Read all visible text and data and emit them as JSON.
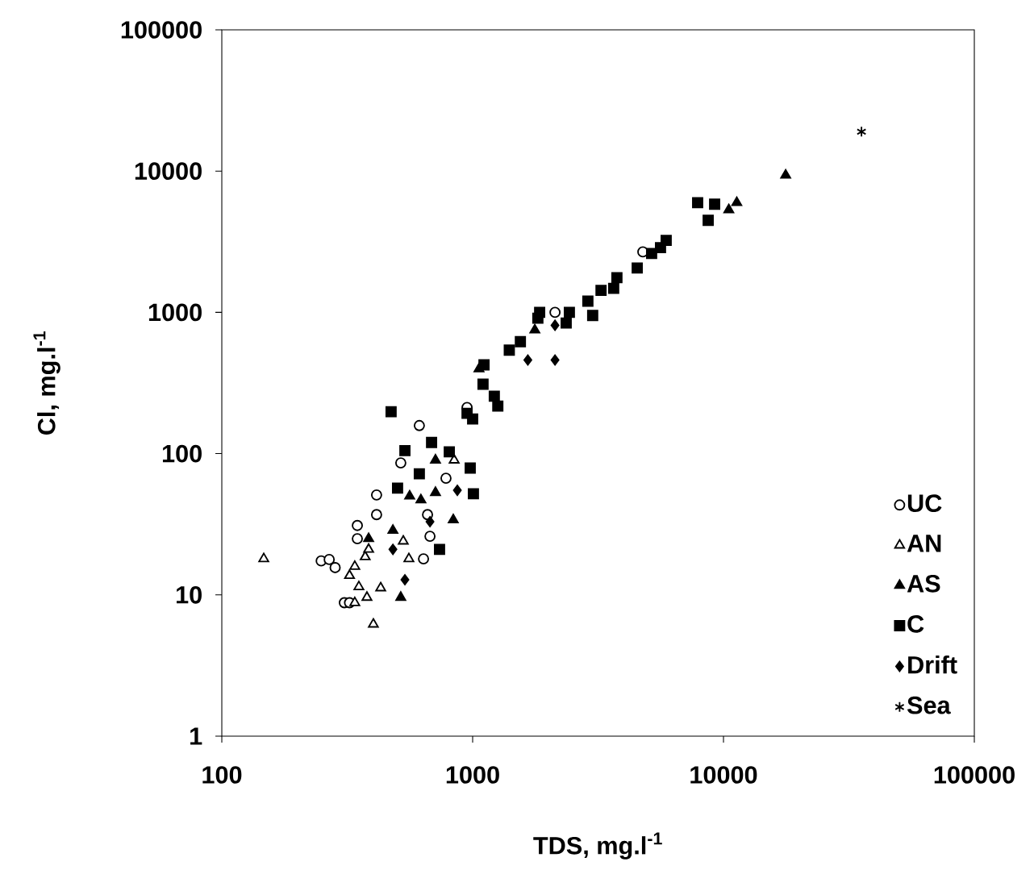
{
  "chart_data": {
    "type": "scatter",
    "xlabel": "TDS, mg.l$^{-1}$",
    "ylabel": "Cl, mg.l$^{-1}$",
    "log": "xy",
    "grid": false,
    "legend": "bottom right",
    "xlim": [
      100,
      100000
    ],
    "ylim": [
      1,
      100000
    ],
    "xticks": [
      100,
      1000,
      10000,
      100000
    ],
    "yticks": [
      1,
      10,
      100,
      1000,
      10000,
      100000
    ],
    "series": [
      {
        "name": "UC",
        "marker": "circle",
        "color": "#ffffff",
        "x": [
          613,
          517,
          414,
          414,
          347,
          347,
          676,
          637,
          249,
          268,
          283,
          308,
          323,
          661,
          783,
          4770,
          2130,
          950
        ],
        "values": [
          158,
          86,
          51,
          37,
          31,
          25,
          26,
          18,
          17.4,
          17.8,
          15.6,
          8.8,
          8.8,
          37,
          67,
          2680,
          1000,
          212
        ]
      },
      {
        "name": "AN",
        "marker": "triangle",
        "color": "#ffffff",
        "x": [
          147,
          402,
          339,
          379,
          430,
          352,
          339,
          323,
          373,
          844,
          385,
          557,
          529
        ],
        "values": [
          18,
          6.2,
          8.8,
          9.6,
          11.2,
          11.4,
          15.9,
          13.7,
          18.6,
          90,
          21,
          18,
          24
        ]
      },
      {
        "name": "AS",
        "marker": "triangle",
        "color": "#000000",
        "x": [
          17700,
          11300,
          10500,
          1770,
          1060,
          711,
          561,
          622,
          837,
          517,
          711,
          385,
          481
        ],
        "values": [
          9350,
          5980,
          5320,
          750,
          398,
          53,
          50,
          47,
          34,
          9.6,
          90,
          25,
          28.6
        ]
      },
      {
        "name": "C",
        "marker": "square",
        "color": "#000000",
        "x": [
          7890,
          9220,
          8690,
          5910,
          5610,
          5170,
          4530,
          3760,
          3650,
          3250,
          2880,
          3010,
          2430,
          2360,
          1850,
          1820,
          1550,
          1400,
          1100,
          1220,
          1260,
          1000,
          950,
          1110,
          473,
          537,
          686,
          807,
          978,
          502,
          1007,
          738,
          613
        ],
        "values": [
          5980,
          5830,
          4480,
          3230,
          2870,
          2610,
          2060,
          1760,
          1480,
          1430,
          1200,
          950,
          1000,
          840,
          1000,
          910,
          620,
          540,
          310,
          255,
          217,
          176,
          193,
          425,
          198,
          105,
          120,
          103,
          79,
          57,
          52,
          21,
          72
        ]
      },
      {
        "name": "Drift",
        "marker": "diamond",
        "color": "#000000",
        "x": [
          1660,
          2130,
          2130,
          537,
          869,
          676,
          481
        ],
        "values": [
          460,
          460,
          810,
          12.8,
          55,
          33,
          21
        ]
      },
      {
        "name": "Sea",
        "marker": "cross",
        "color": "#000000",
        "x": [
          35500
        ],
        "values": [
          19000
        ]
      }
    ]
  }
}
